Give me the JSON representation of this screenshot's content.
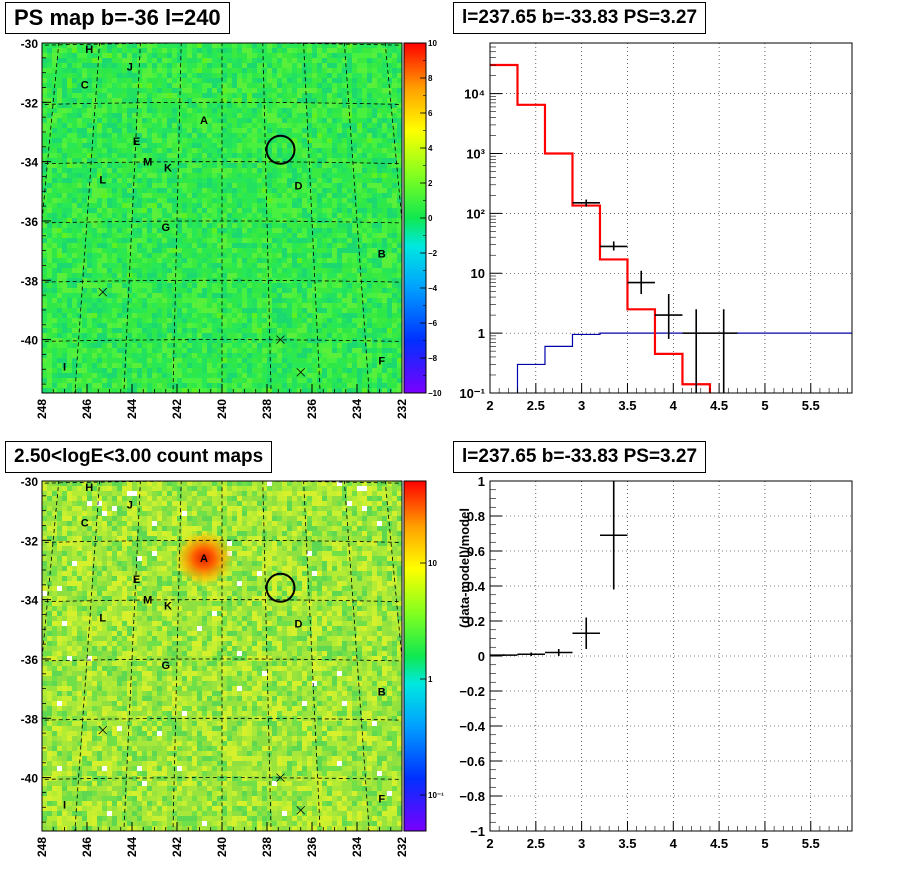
{
  "panels": {
    "tl": {
      "title": "PS map b=-36 l=240",
      "y_ticks": [
        "-30",
        "-32",
        "-34",
        "-36",
        "-38",
        "-40"
      ],
      "x_ticks": [
        "248",
        "246",
        "244",
        "242",
        "240",
        "238",
        "236",
        "234",
        "232"
      ],
      "colorbar_ticks": [
        "10",
        "8",
        "6",
        "4",
        "2",
        "0",
        "−2",
        "−4",
        "−6",
        "−8",
        "−10"
      ],
      "source_labels": [
        "H",
        "J",
        "C",
        "A",
        "E",
        "M",
        "K",
        "L",
        "D",
        "G",
        "B",
        "I",
        "F"
      ]
    },
    "bl": {
      "title": "2.50<logE<3.00 count maps",
      "y_ticks": [
        "-30",
        "-32",
        "-34",
        "-36",
        "-38",
        "-40"
      ],
      "x_ticks": [
        "248",
        "246",
        "244",
        "242",
        "240",
        "238",
        "236",
        "234",
        "232"
      ],
      "colorbar_ticks": [
        "10",
        "1",
        "10⁻¹"
      ],
      "source_labels": [
        "H",
        "J",
        "C",
        "A",
        "E",
        "M",
        "K",
        "L",
        "D",
        "G",
        "B",
        "I",
        "F"
      ]
    },
    "tr": {
      "title": "l=237.65 b=-33.83 PS=3.27",
      "x_ticks": [
        "2",
        "2.5",
        "3",
        "3.5",
        "4",
        "4.5",
        "5",
        "5.5"
      ],
      "y_ticks": [
        "10⁴",
        "10³",
        "10²",
        "10",
        "1",
        "10⁻¹"
      ]
    },
    "br": {
      "title": "l=237.65 b=-33.83 PS=3.27",
      "ylabel": "(data-model)/model",
      "x_ticks": [
        "2",
        "2.5",
        "3",
        "3.5",
        "4",
        "4.5",
        "5",
        "5.5"
      ],
      "y_ticks": [
        "1",
        "0.8",
        "0.6",
        "0.4",
        "0.2",
        "0",
        "−0.2",
        "−0.4",
        "−0.6",
        "−0.8",
        "−1"
      ]
    }
  },
  "colors": {
    "map_green": "#2ee84a",
    "map_yellow": "#9ae83a",
    "model_red": "#ff0000",
    "background_blue": "#0000aa",
    "data_black": "#000000"
  },
  "chart_data": [
    {
      "type": "heatmap",
      "xlim": [
        248,
        232
      ],
      "ylim": [
        -30,
        -41.8
      ],
      "zlim": [
        -10,
        10
      ],
      "grid": true,
      "marker": {
        "shape": "circle",
        "l": 237.4,
        "b": -33.6
      },
      "sources": [
        {
          "label": "H",
          "l": 245.9,
          "b": -30.2
        },
        {
          "label": "J",
          "l": 244.1,
          "b": -30.8
        },
        {
          "label": "C",
          "l": 246.1,
          "b": -31.4
        },
        {
          "label": "A",
          "l": 240.8,
          "b": -32.6
        },
        {
          "label": "E",
          "l": 243.8,
          "b": -33.3
        },
        {
          "label": "M",
          "l": 243.3,
          "b": -34.0
        },
        {
          "label": "K",
          "l": 242.4,
          "b": -34.2
        },
        {
          "label": "L",
          "l": 245.3,
          "b": -34.6
        },
        {
          "label": "D",
          "l": 236.6,
          "b": -34.8
        },
        {
          "label": "G",
          "l": 242.5,
          "b": -36.2
        },
        {
          "label": "B",
          "l": 232.9,
          "b": -37.1
        },
        {
          "label": "I",
          "l": 247.0,
          "b": -40.9
        },
        {
          "label": "F",
          "l": 232.9,
          "b": -40.7
        }
      ],
      "crosses": [
        {
          "l": 245.3,
          "b": -38.4
        },
        {
          "l": 237.4,
          "b": -40.0
        },
        {
          "l": 236.5,
          "b": -41.1
        }
      ]
    },
    {
      "type": "heatmap",
      "xlim": [
        248,
        232
      ],
      "ylim": [
        -30,
        -41.8
      ],
      "zscale": "log",
      "grid": true,
      "marker": {
        "shape": "circle",
        "l": 237.4,
        "b": -33.6
      },
      "hotspot": {
        "label": "A",
        "l": 240.8,
        "b": -32.6
      },
      "sources": [
        {
          "label": "H",
          "l": 245.9,
          "b": -30.2
        },
        {
          "label": "J",
          "l": 244.1,
          "b": -30.8
        },
        {
          "label": "C",
          "l": 246.1,
          "b": -31.4
        },
        {
          "label": "A",
          "l": 240.8,
          "b": -32.6
        },
        {
          "label": "E",
          "l": 243.8,
          "b": -33.3
        },
        {
          "label": "M",
          "l": 243.3,
          "b": -34.0
        },
        {
          "label": "K",
          "l": 242.4,
          "b": -34.2
        },
        {
          "label": "L",
          "l": 245.3,
          "b": -34.6
        },
        {
          "label": "D",
          "l": 236.6,
          "b": -34.8
        },
        {
          "label": "G",
          "l": 242.5,
          "b": -36.2
        },
        {
          "label": "B",
          "l": 232.9,
          "b": -37.1
        },
        {
          "label": "I",
          "l": 247.0,
          "b": -40.9
        },
        {
          "label": "F",
          "l": 232.9,
          "b": -40.7
        }
      ],
      "crosses": [
        {
          "l": 245.3,
          "b": -38.4
        },
        {
          "l": 237.4,
          "b": -40.0
        },
        {
          "l": 236.5,
          "b": -41.1
        }
      ]
    },
    {
      "type": "line",
      "yscale": "log",
      "xlim": [
        2,
        5.95
      ],
      "ylim": [
        0.1,
        70000
      ],
      "grid": true,
      "model_bins": [
        {
          "x0": 2.0,
          "x1": 2.3,
          "y": 30000
        },
        {
          "x0": 2.3,
          "x1": 2.6,
          "y": 6500
        },
        {
          "x0": 2.6,
          "x1": 2.9,
          "y": 1000
        },
        {
          "x0": 2.9,
          "x1": 3.2,
          "y": 135
        },
        {
          "x0": 3.2,
          "x1": 3.5,
          "y": 17
        },
        {
          "x0": 3.5,
          "x1": 3.8,
          "y": 2.5
        },
        {
          "x0": 3.8,
          "x1": 4.1,
          "y": 0.45
        },
        {
          "x0": 4.1,
          "x1": 4.4,
          "y": 0.14
        },
        {
          "x0": 4.4,
          "x1": 5.95,
          "y": 0.07
        }
      ],
      "background_bins": [
        {
          "x0": 2.3,
          "x1": 2.6,
          "y": 0.3
        },
        {
          "x0": 2.6,
          "x1": 2.9,
          "y": 0.6
        },
        {
          "x0": 2.9,
          "x1": 3.2,
          "y": 0.95
        },
        {
          "x0": 3.2,
          "x1": 3.5,
          "y": 1.0
        },
        {
          "x0": 3.5,
          "x1": 5.95,
          "y": 1.0
        }
      ],
      "data_points": [
        {
          "x": 3.05,
          "y": 150,
          "xerr": 0.15,
          "ylo": 130,
          "yhi": 170
        },
        {
          "x": 3.35,
          "y": 28,
          "xerr": 0.15,
          "ylo": 24,
          "yhi": 34
        },
        {
          "x": 3.65,
          "y": 7,
          "xerr": 0.15,
          "ylo": 4.5,
          "yhi": 11
        },
        {
          "x": 3.95,
          "y": 2,
          "xerr": 0.15,
          "ylo": 0.8,
          "yhi": 4.5
        },
        {
          "x": 4.25,
          "y": 1,
          "xerr": 0.15,
          "ylo": 0.1,
          "yhi": 2.5
        },
        {
          "x": 4.55,
          "y": 1,
          "xerr": 0.15,
          "ylo": 0.1,
          "yhi": 2.5
        }
      ]
    },
    {
      "type": "scatter",
      "ylabel": "(data-model)/model",
      "xlim": [
        2,
        5.95
      ],
      "ylim": [
        -1,
        1
      ],
      "grid": true,
      "data_points": [
        {
          "x": 2.15,
          "y": 0.005,
          "xerr": 0.15,
          "yerr": 0.005
        },
        {
          "x": 2.45,
          "y": 0.01,
          "xerr": 0.15,
          "yerr": 0.01
        },
        {
          "x": 2.75,
          "y": 0.02,
          "xerr": 0.15,
          "yerr": 0.02
        },
        {
          "x": 3.05,
          "y": 0.13,
          "xerr": 0.15,
          "yerr": 0.09
        },
        {
          "x": 3.35,
          "y": 0.69,
          "xerr": 0.15,
          "yerr": 0.31
        }
      ]
    }
  ]
}
